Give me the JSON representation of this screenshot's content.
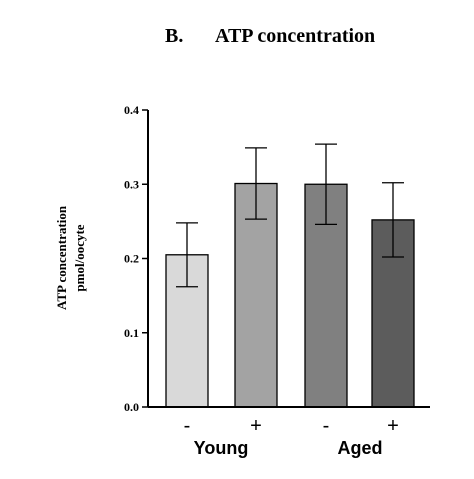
{
  "chart_data": {
    "type": "bar",
    "panel_label": "B.",
    "title": "ATP concentration",
    "ylabel_line1": "ATP concentration",
    "ylabel_line2": "pmol/oocyte",
    "ylim": [
      0,
      0.4
    ],
    "yticks": [
      "0.0",
      "0.1",
      "0.2",
      "0.3",
      "0.4"
    ],
    "ytick_values": [
      0,
      0.1,
      0.2,
      0.3,
      0.4
    ],
    "categories": [
      "-",
      "+",
      "-",
      "+"
    ],
    "groups": [
      {
        "label": "Young",
        "members": [
          0,
          1
        ]
      },
      {
        "label": "Aged",
        "members": [
          2,
          3
        ]
      }
    ],
    "values": [
      0.205,
      0.301,
      0.3,
      0.252
    ],
    "errors": [
      0.043,
      0.048,
      0.054,
      0.05
    ],
    "colors": [
      "#d9d9d9",
      "#a3a3a3",
      "#808080",
      "#5c5c5c"
    ],
    "grid": false
  }
}
